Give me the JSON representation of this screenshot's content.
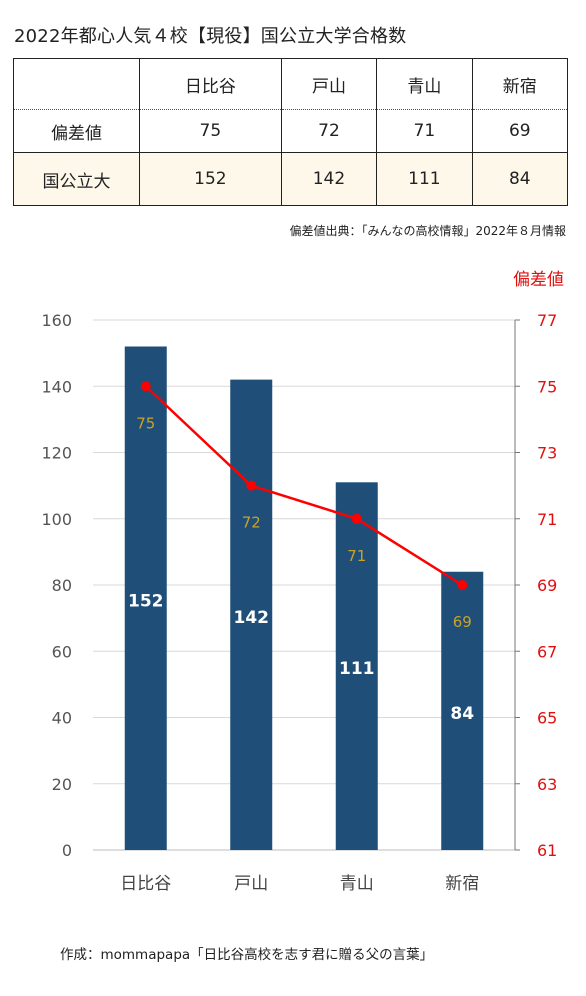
{
  "title": "2022年都心人気４校【現役】国公立大学合格数",
  "table": {
    "corner": "",
    "columns": [
      "日比谷",
      "戸山",
      "青山",
      "新宿"
    ],
    "rows": [
      {
        "label": "偏差値",
        "values": [
          "75",
          "72",
          "71",
          "69"
        ]
      },
      {
        "label": "国公立大",
        "values": [
          "152",
          "142",
          "111",
          "84"
        ]
      }
    ]
  },
  "source_note": "偏差値出典：「みんなの高校情報」2022年８月情報",
  "credit": "作成：mommapapa「日比谷高校を志す君に贈る父の言葉」",
  "colors": {
    "bar": "#1f4e79",
    "line": "#ff0000",
    "point_label": "#c9a227",
    "right_axis": "#e01010"
  },
  "chart_data": {
    "type": "bar",
    "categories": [
      "日比谷",
      "戸山",
      "青山",
      "新宿"
    ],
    "series": [
      {
        "values": [
          152,
          142,
          111,
          84
        ],
        "type": "bar",
        "axis": "left"
      },
      {
        "values": [
          75,
          72,
          71,
          69
        ],
        "type": "line",
        "axis": "right"
      }
    ],
    "ylim": [
      0,
      160
    ],
    "yticks": [
      0,
      20,
      40,
      60,
      80,
      100,
      120,
      140,
      160
    ],
    "y2label": "偏差値",
    "y2lim": [
      61,
      77
    ],
    "y2ticks": [
      61,
      63,
      65,
      67,
      69,
      71,
      73,
      75,
      77
    ],
    "grid": true
  }
}
